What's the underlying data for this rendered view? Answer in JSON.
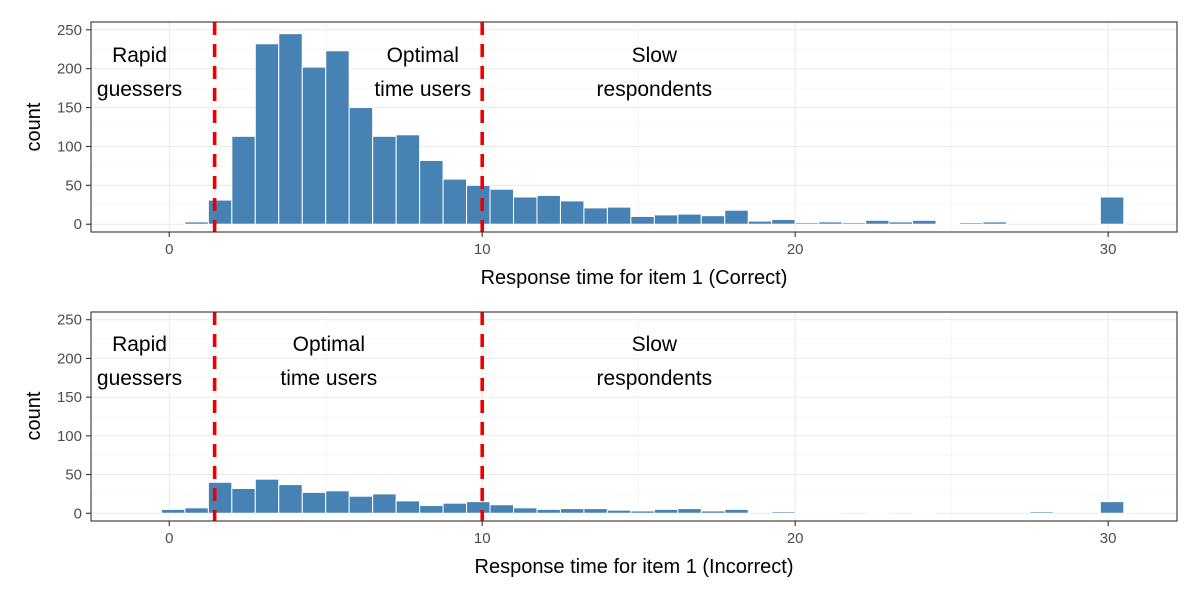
{
  "chart_data": [
    {
      "type": "bar",
      "id": "correct",
      "xlabel": "Response time for item 1 (Correct)",
      "ylabel": "count",
      "xlim": [
        -2.5,
        32.2
      ],
      "ylim": [
        -10,
        260
      ],
      "x_ticks": [
        0,
        10,
        20,
        30
      ],
      "y_ticks": [
        0,
        50,
        100,
        150,
        200,
        250
      ],
      "grid": true,
      "bin_width": 0.75,
      "bin_centers": [
        -1.375,
        -0.625,
        0.125,
        0.875,
        1.625,
        2.375,
        3.125,
        3.875,
        4.625,
        5.375,
        6.125,
        6.875,
        7.625,
        8.375,
        9.125,
        9.875,
        10.625,
        11.375,
        12.125,
        12.875,
        13.625,
        14.375,
        15.125,
        15.875,
        16.625,
        17.375,
        18.125,
        18.875,
        19.625,
        20.375,
        21.125,
        21.875,
        22.625,
        23.375,
        24.125,
        24.875,
        25.625,
        26.375,
        27.125,
        27.875,
        28.625,
        29.375,
        30.125
      ],
      "values": [
        0,
        0,
        0,
        3,
        31,
        113,
        232,
        245,
        202,
        223,
        150,
        113,
        115,
        82,
        58,
        50,
        45,
        35,
        37,
        30,
        21,
        22,
        10,
        12,
        13,
        11,
        18,
        4,
        6,
        2,
        3,
        2,
        5,
        3,
        5,
        1,
        2,
        3,
        0,
        0,
        0,
        0,
        35
      ],
      "cutoffs": [
        1.45,
        10
      ],
      "annotations": [
        {
          "lines": [
            "Rapid",
            "guessers"
          ],
          "x": -0.95
        },
        {
          "lines": [
            "Optimal",
            "time users"
          ],
          "x": 8.1
        },
        {
          "lines": [
            "Slow",
            "respondents"
          ],
          "x": 15.5
        }
      ]
    },
    {
      "type": "bar",
      "id": "incorrect",
      "xlabel": "Response time for item 1 (Incorrect)",
      "ylabel": "count",
      "xlim": [
        -2.5,
        32.2
      ],
      "ylim": [
        -10,
        260
      ],
      "x_ticks": [
        0,
        10,
        20,
        30
      ],
      "y_ticks": [
        0,
        50,
        100,
        150,
        200,
        250
      ],
      "grid": true,
      "bin_width": 0.75,
      "bin_centers": [
        -1.375,
        -0.625,
        0.125,
        0.875,
        1.625,
        2.375,
        3.125,
        3.875,
        4.625,
        5.375,
        6.125,
        6.875,
        7.625,
        8.375,
        9.125,
        9.875,
        10.625,
        11.375,
        12.125,
        12.875,
        13.625,
        14.375,
        15.125,
        15.875,
        16.625,
        17.375,
        18.125,
        18.875,
        19.625,
        20.375,
        21.125,
        21.875,
        22.625,
        23.375,
        24.125,
        24.875,
        25.625,
        26.375,
        27.125,
        27.875,
        28.625,
        29.375,
        30.125
      ],
      "values": [
        0,
        0,
        5,
        7,
        40,
        32,
        44,
        37,
        27,
        29,
        22,
        25,
        16,
        10,
        13,
        15,
        11,
        7,
        5,
        6,
        6,
        4,
        3,
        5,
        6,
        3,
        5,
        0,
        2,
        1,
        1,
        0,
        1,
        0,
        1,
        0,
        0,
        0,
        0,
        2,
        0,
        0,
        15
      ],
      "cutoffs": [
        1.45,
        10
      ],
      "annotations": [
        {
          "lines": [
            "Rapid",
            "guessers"
          ],
          "x": -0.95
        },
        {
          "lines": [
            "Optimal",
            "time users"
          ],
          "x": 5.1
        },
        {
          "lines": [
            "Slow",
            "respondents"
          ],
          "x": 15.5
        }
      ]
    }
  ],
  "colors": {
    "bar_fill": "#4682b4",
    "cutoff_line": "#ee0000",
    "panel_background": "#ffffff"
  }
}
